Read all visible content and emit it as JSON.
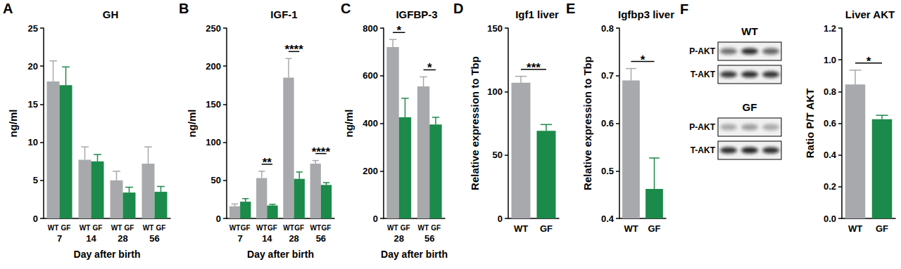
{
  "chart_data": [
    {
      "type": "bar",
      "panel": "A",
      "title": "GH",
      "y_label": "ng/ml",
      "x_label": "Day after birth",
      "categories": [
        "7",
        "14",
        "28",
        "56"
      ],
      "series": [
        {
          "name": "WT",
          "color": "#a7a9ac",
          "values": [
            18,
            7.7,
            5,
            7.2
          ],
          "errors": [
            2.7,
            1.7,
            1.2,
            2.2
          ]
        },
        {
          "name": "GF",
          "color": "#1b8a4a",
          "values": [
            17.5,
            7.5,
            3.4,
            3.5
          ],
          "errors": [
            2.4,
            0.9,
            0.7,
            0.7
          ]
        }
      ],
      "ylim": [
        0,
        25
      ],
      "yticks": [
        0,
        5,
        10,
        15,
        20,
        25
      ],
      "grid": false
    },
    {
      "type": "bar",
      "panel": "B",
      "title": "IGF-1",
      "y_label": "ng/ml",
      "x_label": "Day after birth",
      "categories": [
        "7",
        "14",
        "28",
        "56"
      ],
      "series": [
        {
          "name": "WT",
          "color": "#a7a9ac",
          "values": [
            16,
            53,
            185,
            72
          ],
          "errors": [
            3,
            9,
            25,
            4
          ]
        },
        {
          "name": "GF",
          "color": "#1b8a4a",
          "values": [
            22,
            17,
            52,
            44
          ],
          "errors": [
            4,
            1.5,
            9,
            3
          ]
        }
      ],
      "annotations": [
        null,
        "**",
        "****",
        "****"
      ],
      "ylim": [
        0,
        250
      ],
      "yticks": [
        0,
        50,
        100,
        150,
        200,
        250
      ],
      "grid": false
    },
    {
      "type": "bar",
      "panel": "C",
      "title": "IGFBP-3",
      "y_label": "ng/ml",
      "x_label": "Day after birth",
      "categories": [
        "28",
        "56"
      ],
      "series": [
        {
          "name": "WT",
          "color": "#a7a9ac",
          "values": [
            720,
            555
          ],
          "errors": [
            32,
            40
          ]
        },
        {
          "name": "GF",
          "color": "#1b8a4a",
          "values": [
            425,
            395
          ],
          "errors": [
            80,
            30
          ]
        }
      ],
      "annotations": [
        "*",
        "*"
      ],
      "ylim": [
        0,
        800
      ],
      "yticks": [
        0,
        200,
        400,
        600,
        800
      ],
      "grid": false
    },
    {
      "type": "bar",
      "panel": "D",
      "title": "Igf1 liver",
      "y_label": "Relative expression to Tbp",
      "categories": [
        "WT",
        "GF"
      ],
      "values": [
        107,
        69
      ],
      "errors": [
        5,
        5
      ],
      "colors": [
        "#a7a9ac",
        "#1b8a4a"
      ],
      "annotation": "***",
      "ylim": [
        0,
        150
      ],
      "yticks": [
        0,
        50,
        100,
        150
      ],
      "grid": false
    },
    {
      "type": "bar",
      "panel": "E",
      "title": "Igfbp3 liver",
      "y_label": "Relative expression to Tbp",
      "categories": [
        "WT",
        "GF"
      ],
      "values": [
        0.69,
        0.462
      ],
      "errors": [
        0.025,
        0.065
      ],
      "colors": [
        "#a7a9ac",
        "#1b8a4a"
      ],
      "annotation": "*",
      "ylim": [
        0.4,
        0.8
      ],
      "yticks": [
        0.4,
        0.5,
        0.6,
        0.7,
        0.8
      ],
      "grid": false
    },
    {
      "type": "bar",
      "panel": "F",
      "title": "Liver AKT",
      "y_label": "Ratio P/T AKT",
      "categories": [
        "WT",
        "GF"
      ],
      "values": [
        0.845,
        0.625
      ],
      "errors": [
        0.09,
        0.025
      ],
      "colors": [
        "#a7a9ac",
        "#1b8a4a"
      ],
      "annotation": "*",
      "ylim": [
        0,
        1.2
      ],
      "yticks": [
        {
          "value": 0,
          "label": "0.0"
        },
        0.2,
        0.4,
        0.6,
        0.8,
        {
          "value": 1,
          "label": "1.0"
        },
        1.2
      ],
      "grid": false,
      "blot": {
        "groups": [
          {
            "label": "WT",
            "rows": [
              "P-AKT",
              "T-AKT"
            ]
          },
          {
            "label": "GF",
            "rows": [
              "P-AKT",
              "T-AKT"
            ]
          }
        ]
      }
    }
  ]
}
